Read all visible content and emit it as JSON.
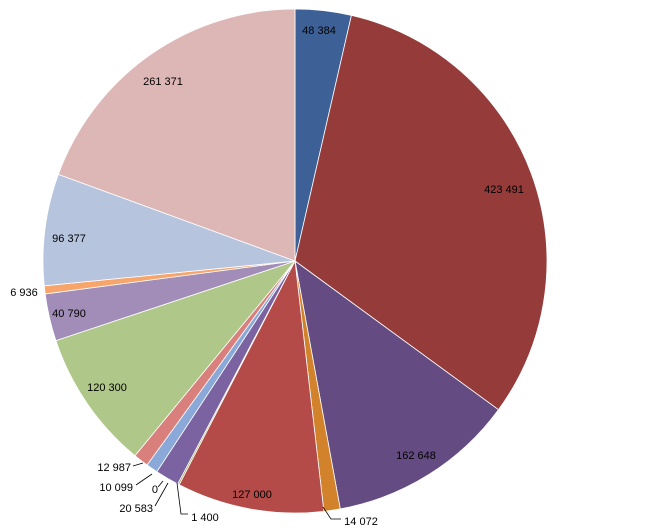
{
  "chart_data": {
    "type": "pie",
    "title": "",
    "start_angle": "12 o'clock",
    "direction": "clockwise",
    "slices": [
      {
        "value": 48384,
        "label": "48 384",
        "color": "#3d6196"
      },
      {
        "value": 423491,
        "label": "423 491",
        "color": "#953c3b"
      },
      {
        "value": 162648,
        "label": "162 648",
        "color": "#644c82"
      },
      {
        "value": 14072,
        "label": "14 072",
        "color": "#d2822a"
      },
      {
        "value": 127000,
        "label": "127 000",
        "color": "#b44b48"
      },
      {
        "value": 1400,
        "label": "1 400",
        "color": "#9aaa4e"
      },
      {
        "value": 20583,
        "label": "20 583",
        "color": "#7b62a0"
      },
      {
        "value": 0,
        "label": "0",
        "color": "#4a9bb5"
      },
      {
        "value": 10099,
        "label": "10 099",
        "color": "#8aa8d8"
      },
      {
        "value": 12987,
        "label": "12 987",
        "color": "#d97f7c"
      },
      {
        "value": 120300,
        "label": "120 300",
        "color": "#afc788"
      },
      {
        "value": 40790,
        "label": "40 790",
        "color": "#a18db8"
      },
      {
        "value": 6936,
        "label": "6 936",
        "color": "#f7a56b"
      },
      {
        "value": 96377,
        "label": "96 377",
        "color": "#b6c4de"
      },
      {
        "value": 261371,
        "label": "261 371",
        "color": "#ddb7b6"
      }
    ]
  }
}
